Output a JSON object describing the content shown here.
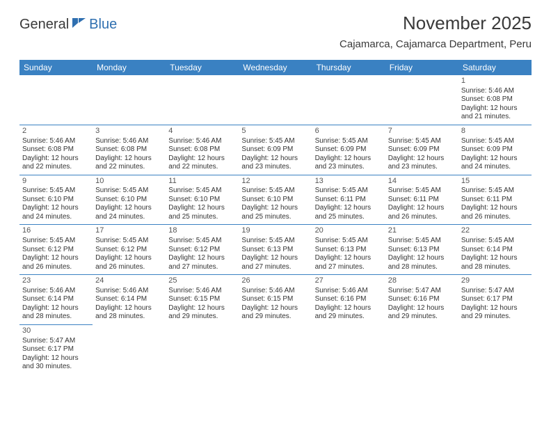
{
  "logo": {
    "general": "General",
    "blue": "Blue"
  },
  "header": {
    "title": "November 2025",
    "location": "Cajamarca, Cajamarca Department, Peru"
  },
  "colors": {
    "header_bg": "#3a81c2",
    "header_text": "#ffffff",
    "cell_border": "#3a81c2",
    "text": "#333333",
    "daynum": "#555555",
    "logo_blue": "#2f6fb0",
    "logo_gray": "#3a3a3a"
  },
  "weekdays": [
    "Sunday",
    "Monday",
    "Tuesday",
    "Wednesday",
    "Thursday",
    "Friday",
    "Saturday"
  ],
  "weeks": [
    [
      null,
      null,
      null,
      null,
      null,
      null,
      {
        "n": "1",
        "sr": "Sunrise: 5:46 AM",
        "ss": "Sunset: 6:08 PM",
        "dl": "Daylight: 12 hours and 21 minutes."
      }
    ],
    [
      {
        "n": "2",
        "sr": "Sunrise: 5:46 AM",
        "ss": "Sunset: 6:08 PM",
        "dl": "Daylight: 12 hours and 22 minutes."
      },
      {
        "n": "3",
        "sr": "Sunrise: 5:46 AM",
        "ss": "Sunset: 6:08 PM",
        "dl": "Daylight: 12 hours and 22 minutes."
      },
      {
        "n": "4",
        "sr": "Sunrise: 5:46 AM",
        "ss": "Sunset: 6:08 PM",
        "dl": "Daylight: 12 hours and 22 minutes."
      },
      {
        "n": "5",
        "sr": "Sunrise: 5:45 AM",
        "ss": "Sunset: 6:09 PM",
        "dl": "Daylight: 12 hours and 23 minutes."
      },
      {
        "n": "6",
        "sr": "Sunrise: 5:45 AM",
        "ss": "Sunset: 6:09 PM",
        "dl": "Daylight: 12 hours and 23 minutes."
      },
      {
        "n": "7",
        "sr": "Sunrise: 5:45 AM",
        "ss": "Sunset: 6:09 PM",
        "dl": "Daylight: 12 hours and 23 minutes."
      },
      {
        "n": "8",
        "sr": "Sunrise: 5:45 AM",
        "ss": "Sunset: 6:09 PM",
        "dl": "Daylight: 12 hours and 24 minutes."
      }
    ],
    [
      {
        "n": "9",
        "sr": "Sunrise: 5:45 AM",
        "ss": "Sunset: 6:10 PM",
        "dl": "Daylight: 12 hours and 24 minutes."
      },
      {
        "n": "10",
        "sr": "Sunrise: 5:45 AM",
        "ss": "Sunset: 6:10 PM",
        "dl": "Daylight: 12 hours and 24 minutes."
      },
      {
        "n": "11",
        "sr": "Sunrise: 5:45 AM",
        "ss": "Sunset: 6:10 PM",
        "dl": "Daylight: 12 hours and 25 minutes."
      },
      {
        "n": "12",
        "sr": "Sunrise: 5:45 AM",
        "ss": "Sunset: 6:10 PM",
        "dl": "Daylight: 12 hours and 25 minutes."
      },
      {
        "n": "13",
        "sr": "Sunrise: 5:45 AM",
        "ss": "Sunset: 6:11 PM",
        "dl": "Daylight: 12 hours and 25 minutes."
      },
      {
        "n": "14",
        "sr": "Sunrise: 5:45 AM",
        "ss": "Sunset: 6:11 PM",
        "dl": "Daylight: 12 hours and 26 minutes."
      },
      {
        "n": "15",
        "sr": "Sunrise: 5:45 AM",
        "ss": "Sunset: 6:11 PM",
        "dl": "Daylight: 12 hours and 26 minutes."
      }
    ],
    [
      {
        "n": "16",
        "sr": "Sunrise: 5:45 AM",
        "ss": "Sunset: 6:12 PM",
        "dl": "Daylight: 12 hours and 26 minutes."
      },
      {
        "n": "17",
        "sr": "Sunrise: 5:45 AM",
        "ss": "Sunset: 6:12 PM",
        "dl": "Daylight: 12 hours and 26 minutes."
      },
      {
        "n": "18",
        "sr": "Sunrise: 5:45 AM",
        "ss": "Sunset: 6:12 PM",
        "dl": "Daylight: 12 hours and 27 minutes."
      },
      {
        "n": "19",
        "sr": "Sunrise: 5:45 AM",
        "ss": "Sunset: 6:13 PM",
        "dl": "Daylight: 12 hours and 27 minutes."
      },
      {
        "n": "20",
        "sr": "Sunrise: 5:45 AM",
        "ss": "Sunset: 6:13 PM",
        "dl": "Daylight: 12 hours and 27 minutes."
      },
      {
        "n": "21",
        "sr": "Sunrise: 5:45 AM",
        "ss": "Sunset: 6:13 PM",
        "dl": "Daylight: 12 hours and 28 minutes."
      },
      {
        "n": "22",
        "sr": "Sunrise: 5:45 AM",
        "ss": "Sunset: 6:14 PM",
        "dl": "Daylight: 12 hours and 28 minutes."
      }
    ],
    [
      {
        "n": "23",
        "sr": "Sunrise: 5:46 AM",
        "ss": "Sunset: 6:14 PM",
        "dl": "Daylight: 12 hours and 28 minutes."
      },
      {
        "n": "24",
        "sr": "Sunrise: 5:46 AM",
        "ss": "Sunset: 6:14 PM",
        "dl": "Daylight: 12 hours and 28 minutes."
      },
      {
        "n": "25",
        "sr": "Sunrise: 5:46 AM",
        "ss": "Sunset: 6:15 PM",
        "dl": "Daylight: 12 hours and 29 minutes."
      },
      {
        "n": "26",
        "sr": "Sunrise: 5:46 AM",
        "ss": "Sunset: 6:15 PM",
        "dl": "Daylight: 12 hours and 29 minutes."
      },
      {
        "n": "27",
        "sr": "Sunrise: 5:46 AM",
        "ss": "Sunset: 6:16 PM",
        "dl": "Daylight: 12 hours and 29 minutes."
      },
      {
        "n": "28",
        "sr": "Sunrise: 5:47 AM",
        "ss": "Sunset: 6:16 PM",
        "dl": "Daylight: 12 hours and 29 minutes."
      },
      {
        "n": "29",
        "sr": "Sunrise: 5:47 AM",
        "ss": "Sunset: 6:17 PM",
        "dl": "Daylight: 12 hours and 29 minutes."
      }
    ],
    [
      {
        "n": "30",
        "sr": "Sunrise: 5:47 AM",
        "ss": "Sunset: 6:17 PM",
        "dl": "Daylight: 12 hours and 30 minutes."
      },
      null,
      null,
      null,
      null,
      null,
      null
    ]
  ]
}
